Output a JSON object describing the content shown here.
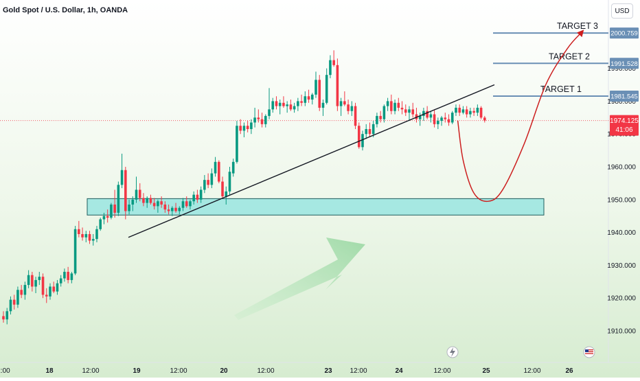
{
  "header": {
    "title": "Gold Spot / U.S. Dollar, 1h, OANDA",
    "currency": "USD"
  },
  "price_axis": {
    "ticks": [
      "1910.000",
      "1920.000",
      "1930.000",
      "1940.000",
      "1950.000",
      "1960.000",
      "1970.000",
      "1980.000",
      "1990.000"
    ],
    "current_price": "1974.125",
    "countdown": "41:06",
    "target_tags": [
      "1981.545",
      "1991.528",
      "2000.759"
    ]
  },
  "time_axis": {
    "labels": [
      "2:00",
      "18",
      "12:00",
      "19",
      "12:00",
      "20",
      "12:00",
      "23",
      "12:00",
      "24",
      "12:00",
      "25",
      "12:00",
      "26"
    ]
  },
  "annotations": {
    "targets": [
      {
        "label": "TARGET 1",
        "price": 1981.545
      },
      {
        "label": "TARGET 2",
        "price": 1991.528
      },
      {
        "label": "TARGET 3",
        "price": 2000.759
      }
    ],
    "demand_zone": {
      "low": 1945.3,
      "high": 1950.3
    },
    "colors": {
      "zone_fill": "#99e5e0",
      "zone_stroke": "#1f5c5c",
      "target_line": "#6a8fb5",
      "projection": "#cc1f1f",
      "trendline": "#131722",
      "arrow": "#8fd49a"
    }
  },
  "chart_data": {
    "type": "candlestick",
    "title": "Gold Spot / U.S. Dollar, 1h, OANDA",
    "ylim": [
      1905,
      2005
    ],
    "x_ticks": [
      "2:00",
      "18",
      "12:00",
      "19",
      "12:00",
      "20",
      "12:00",
      "23",
      "12:00",
      "24",
      "12:00",
      "25",
      "12:00",
      "26"
    ],
    "y_ticks": [
      1910,
      1920,
      1930,
      1940,
      1950,
      1960,
      1970,
      1980,
      1990
    ],
    "candle_colors": {
      "up": "#089981",
      "down": "#f23645"
    },
    "candles": [
      [
        1914.5,
        1916.0,
        1912.5,
        1913.5
      ],
      [
        1913.5,
        1917.0,
        1912.0,
        1916.0
      ],
      [
        1916.0,
        1920.5,
        1915.0,
        1919.5
      ],
      [
        1919.5,
        1921.0,
        1916.5,
        1918.0
      ],
      [
        1918.0,
        1923.5,
        1917.0,
        1922.5
      ],
      [
        1922.5,
        1924.0,
        1920.0,
        1921.0
      ],
      [
        1921.0,
        1925.0,
        1919.5,
        1924.0
      ],
      [
        1924.0,
        1928.5,
        1923.0,
        1927.0
      ],
      [
        1927.0,
        1928.0,
        1922.0,
        1923.5
      ],
      [
        1923.5,
        1926.5,
        1921.5,
        1925.5
      ],
      [
        1925.5,
        1928.0,
        1924.0,
        1926.5
      ],
      [
        1926.5,
        1927.5,
        1920.0,
        1921.0
      ],
      [
        1921.0,
        1923.0,
        1918.5,
        1920.5
      ],
      [
        1920.5,
        1924.5,
        1919.5,
        1923.5
      ],
      [
        1923.5,
        1925.0,
        1921.5,
        1922.0
      ],
      [
        1922.0,
        1925.5,
        1921.0,
        1924.5
      ],
      [
        1924.5,
        1927.0,
        1923.5,
        1926.0
      ],
      [
        1926.0,
        1929.0,
        1925.0,
        1928.0
      ],
      [
        1928.0,
        1929.5,
        1924.5,
        1925.5
      ],
      [
        1925.5,
        1928.0,
        1924.5,
        1927.5
      ],
      [
        1927.5,
        1942.0,
        1927.0,
        1941.0
      ],
      [
        1941.0,
        1943.5,
        1938.5,
        1939.5
      ],
      [
        1939.5,
        1941.5,
        1937.5,
        1938.5
      ],
      [
        1938.5,
        1940.5,
        1937.0,
        1939.5
      ],
      [
        1939.5,
        1940.5,
        1936.5,
        1937.5
      ],
      [
        1937.5,
        1939.5,
        1936.0,
        1938.0
      ],
      [
        1938.0,
        1942.0,
        1937.0,
        1941.0
      ],
      [
        1941.0,
        1944.5,
        1940.5,
        1944.0
      ],
      [
        1944.0,
        1946.0,
        1942.5,
        1945.0
      ],
      [
        1945.0,
        1947.0,
        1943.0,
        1944.5
      ],
      [
        1944.5,
        1949.0,
        1944.0,
        1948.5
      ],
      [
        1948.5,
        1953.0,
        1944.5,
        1946.0
      ],
      [
        1946.0,
        1955.5,
        1945.0,
        1954.5
      ],
      [
        1954.5,
        1964.0,
        1953.5,
        1959.0
      ],
      [
        1959.0,
        1960.0,
        1944.0,
        1946.5
      ],
      [
        1946.5,
        1950.0,
        1945.5,
        1948.5
      ],
      [
        1948.5,
        1951.0,
        1946.5,
        1950.0
      ],
      [
        1950.0,
        1957.0,
        1949.0,
        1953.0
      ],
      [
        1953.0,
        1955.0,
        1949.5,
        1950.5
      ],
      [
        1950.5,
        1952.0,
        1948.0,
        1949.0
      ],
      [
        1949.0,
        1951.0,
        1947.5,
        1950.5
      ],
      [
        1950.5,
        1951.5,
        1948.5,
        1949.0
      ],
      [
        1949.0,
        1950.5,
        1947.0,
        1948.0
      ],
      [
        1948.0,
        1950.0,
        1946.0,
        1949.5
      ],
      [
        1949.5,
        1951.0,
        1947.5,
        1948.5
      ],
      [
        1948.5,
        1949.5,
        1946.0,
        1947.0
      ],
      [
        1947.0,
        1948.5,
        1945.5,
        1946.5
      ],
      [
        1946.5,
        1948.0,
        1945.0,
        1947.5
      ],
      [
        1947.5,
        1949.0,
        1946.0,
        1946.5
      ],
      [
        1946.5,
        1948.0,
        1945.5,
        1947.5
      ],
      [
        1947.5,
        1950.5,
        1946.5,
        1949.5
      ],
      [
        1949.5,
        1951.0,
        1947.5,
        1948.0
      ],
      [
        1948.0,
        1950.0,
        1947.0,
        1949.5
      ],
      [
        1949.5,
        1952.5,
        1948.5,
        1951.5
      ],
      [
        1951.5,
        1953.0,
        1949.0,
        1950.0
      ],
      [
        1950.0,
        1954.0,
        1949.0,
        1953.0
      ],
      [
        1953.0,
        1957.5,
        1952.0,
        1956.0
      ],
      [
        1956.0,
        1958.0,
        1953.5,
        1954.5
      ],
      [
        1954.5,
        1959.5,
        1953.5,
        1958.0
      ],
      [
        1958.0,
        1963.0,
        1957.0,
        1961.5
      ],
      [
        1961.5,
        1962.0,
        1955.0,
        1955.5
      ],
      [
        1955.5,
        1957.0,
        1950.5,
        1951.0
      ],
      [
        1951.0,
        1954.0,
        1948.5,
        1952.5
      ],
      [
        1952.5,
        1960.0,
        1951.5,
        1958.5
      ],
      [
        1958.0,
        1962.5,
        1957.0,
        1961.5
      ],
      [
        1961.5,
        1974.0,
        1961.0,
        1972.5
      ],
      [
        1972.5,
        1974.5,
        1970.0,
        1971.0
      ],
      [
        1971.0,
        1973.5,
        1969.0,
        1972.5
      ],
      [
        1972.5,
        1974.0,
        1970.5,
        1971.5
      ],
      [
        1971.5,
        1974.5,
        1970.0,
        1973.5
      ],
      [
        1973.5,
        1978.0,
        1972.0,
        1975.0
      ],
      [
        1975.0,
        1977.5,
        1973.5,
        1974.5
      ],
      [
        1974.5,
        1976.5,
        1972.0,
        1973.0
      ],
      [
        1973.0,
        1976.0,
        1972.0,
        1975.5
      ],
      [
        1975.5,
        1984.0,
        1974.5,
        1977.5
      ],
      [
        1977.5,
        1981.0,
        1976.5,
        1980.0
      ],
      [
        1980.0,
        1981.5,
        1977.5,
        1978.5
      ],
      [
        1978.5,
        1980.5,
        1976.0,
        1979.5
      ],
      [
        1979.5,
        1981.5,
        1978.0,
        1978.5
      ],
      [
        1978.5,
        1980.0,
        1976.5,
        1979.0
      ],
      [
        1979.0,
        1980.5,
        1977.0,
        1977.5
      ],
      [
        1977.5,
        1979.5,
        1976.5,
        1978.5
      ],
      [
        1978.5,
        1981.0,
        1977.0,
        1980.0
      ],
      [
        1980.0,
        1982.0,
        1978.5,
        1979.5
      ],
      [
        1979.5,
        1983.0,
        1978.5,
        1981.5
      ],
      [
        1981.5,
        1983.5,
        1979.5,
        1980.5
      ],
      [
        1980.5,
        1982.5,
        1979.0,
        1982.0
      ],
      [
        1982.0,
        1989.0,
        1981.0,
        1986.5
      ],
      [
        1986.5,
        1988.0,
        1977.0,
        1978.0
      ],
      [
        1978.0,
        1980.5,
        1975.5,
        1979.5
      ],
      [
        1979.5,
        1990.0,
        1979.0,
        1988.0
      ],
      [
        1988.0,
        1994.0,
        1987.0,
        1992.5
      ],
      [
        1992.5,
        1995.5,
        1990.5,
        1991.0
      ],
      [
        1991.0,
        1993.0,
        1977.0,
        1978.5
      ],
      [
        1978.5,
        1981.0,
        1975.5,
        1980.0
      ],
      [
        1980.0,
        1983.0,
        1978.5,
        1979.0
      ],
      [
        1979.0,
        1980.5,
        1976.0,
        1977.0
      ],
      [
        1977.0,
        1980.0,
        1975.5,
        1978.5
      ],
      [
        1978.5,
        1979.5,
        1971.5,
        1972.5
      ],
      [
        1972.5,
        1973.5,
        1965.5,
        1966.0
      ],
      [
        1966.0,
        1971.0,
        1965.0,
        1970.0
      ],
      [
        1970.0,
        1973.0,
        1968.5,
        1971.5
      ],
      [
        1971.5,
        1973.5,
        1969.0,
        1970.0
      ],
      [
        1970.0,
        1974.0,
        1969.0,
        1973.0
      ],
      [
        1973.0,
        1976.5,
        1972.0,
        1975.5
      ],
      [
        1975.5,
        1977.0,
        1973.5,
        1974.5
      ],
      [
        1974.5,
        1979.0,
        1973.5,
        1978.5
      ],
      [
        1978.5,
        1981.0,
        1977.0,
        1980.0
      ],
      [
        1980.0,
        1982.0,
        1976.0,
        1977.0
      ],
      [
        1977.0,
        1980.5,
        1976.0,
        1979.5
      ],
      [
        1979.5,
        1981.0,
        1977.0,
        1978.0
      ],
      [
        1978.0,
        1980.0,
        1976.0,
        1977.5
      ],
      [
        1977.5,
        1979.0,
        1975.5,
        1976.5
      ],
      [
        1976.5,
        1978.5,
        1974.0,
        1977.5
      ],
      [
        1977.5,
        1979.5,
        1975.0,
        1976.0
      ],
      [
        1976.0,
        1978.0,
        1973.5,
        1974.5
      ],
      [
        1974.5,
        1976.5,
        1972.5,
        1975.5
      ],
      [
        1975.5,
        1978.0,
        1974.0,
        1977.0
      ],
      [
        1977.0,
        1978.5,
        1974.5,
        1975.0
      ],
      [
        1975.0,
        1977.0,
        1973.5,
        1976.0
      ],
      [
        1976.0,
        1977.5,
        1972.0,
        1973.0
      ],
      [
        1973.0,
        1975.0,
        1971.5,
        1974.0
      ],
      [
        1974.0,
        1975.5,
        1972.5,
        1975.0
      ],
      [
        1975.0,
        1976.5,
        1973.5,
        1974.5
      ],
      [
        1974.5,
        1976.0,
        1972.5,
        1973.5
      ],
      [
        1973.5,
        1977.0,
        1973.0,
        1976.5
      ],
      [
        1976.5,
        1979.0,
        1975.5,
        1978.0
      ],
      [
        1978.0,
        1979.0,
        1975.5,
        1976.5
      ],
      [
        1976.5,
        1978.5,
        1976.0,
        1977.5
      ],
      [
        1977.5,
        1978.5,
        1975.0,
        1976.0
      ],
      [
        1976.0,
        1978.0,
        1975.0,
        1977.0
      ],
      [
        1977.0,
        1978.0,
        1975.5,
        1976.5
      ],
      [
        1976.5,
        1979.0,
        1975.5,
        1978.0
      ],
      [
        1978.0,
        1978.5,
        1974.5,
        1975.0
      ],
      [
        1975.0,
        1975.5,
        1973.5,
        1974.1
      ]
    ],
    "projection_path": [
      {
        "i": 126.5,
        "p": 1974.1
      },
      {
        "i": 128.0,
        "p": 1962.0
      },
      {
        "i": 131.0,
        "p": 1952.0
      },
      {
        "i": 135.0,
        "p": 1949.5
      },
      {
        "i": 139.0,
        "p": 1953.0
      },
      {
        "i": 145.0,
        "p": 1967.0
      },
      {
        "i": 151.0,
        "p": 1985.0
      },
      {
        "i": 157.0,
        "p": 1996.0
      },
      {
        "i": 161.0,
        "p": 2001.0
      }
    ]
  }
}
